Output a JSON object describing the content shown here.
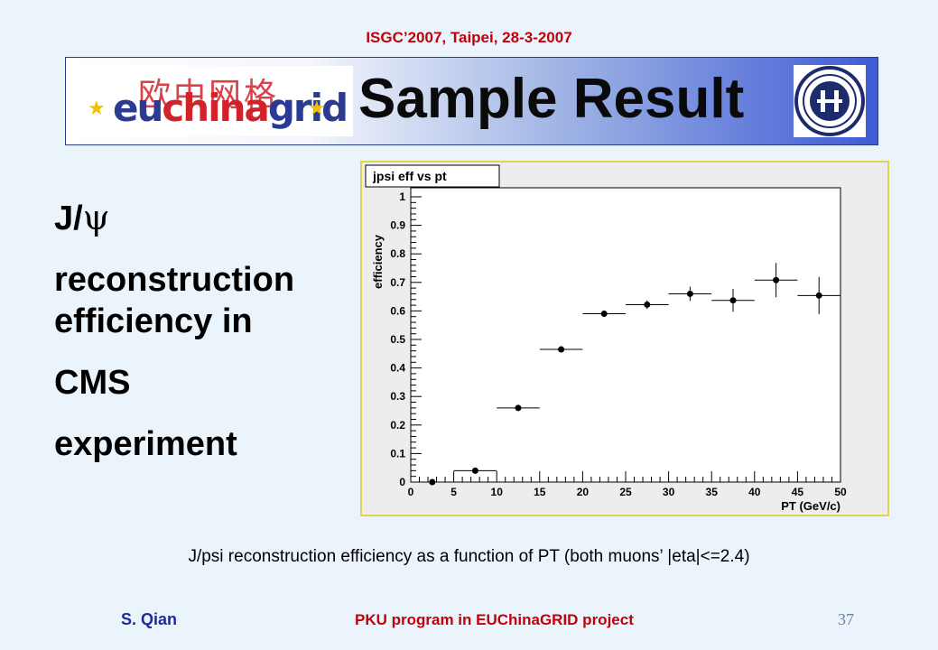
{
  "header": {
    "conference": "ISGC’2007, Taipei, 28-3-2007"
  },
  "banner": {
    "title": "Sample Result",
    "logo_left": {
      "cn_text": "欧中网格",
      "eu": "eu",
      "china": "china",
      "grid": "grid"
    },
    "logo_right": "university-seal-icon"
  },
  "left_text": {
    "line1_prefix": "J/",
    "psi": "ψ",
    "line2": "reconstruction",
    "line3": "efficiency in",
    "line4": "CMS",
    "line5": "experiment"
  },
  "chart_data": {
    "type": "scatter",
    "title": "jpsi eff vs pt",
    "xlabel": "PT  (GeV/c)",
    "ylabel": "efficiency",
    "xlim": [
      0,
      50
    ],
    "ylim": [
      0,
      1
    ],
    "xticks": [
      "0",
      "5",
      "10",
      "15",
      "20",
      "25",
      "30",
      "35",
      "40",
      "45",
      "50"
    ],
    "yticks": [
      "0",
      "0.1",
      "0.2",
      "0.3",
      "0.4",
      "0.5",
      "0.6",
      "0.7",
      "0.8",
      "0.9",
      "1"
    ],
    "series": [
      {
        "points": [
          {
            "x": 2.5,
            "y": 0.0,
            "xerr": 0.5,
            "yerr": 0.0
          },
          {
            "x": 7.5,
            "y": 0.04,
            "xerr": 2.5,
            "yerr": 0.003
          },
          {
            "x": 12.5,
            "y": 0.26,
            "xerr": 2.5,
            "yerr": 0.005
          },
          {
            "x": 17.5,
            "y": 0.465,
            "xerr": 2.5,
            "yerr": 0.006
          },
          {
            "x": 22.5,
            "y": 0.59,
            "xerr": 2.5,
            "yerr": 0.007
          },
          {
            "x": 27.5,
            "y": 0.622,
            "xerr": 2.5,
            "yerr": 0.015
          },
          {
            "x": 32.5,
            "y": 0.66,
            "xerr": 2.5,
            "yerr": 0.025
          },
          {
            "x": 37.5,
            "y": 0.637,
            "xerr": 2.5,
            "yerr": 0.04
          },
          {
            "x": 42.5,
            "y": 0.708,
            "xerr": 2.5,
            "yerr": 0.06
          },
          {
            "x": 47.5,
            "y": 0.654,
            "xerr": 2.5,
            "yerr": 0.065
          }
        ]
      }
    ],
    "grid": false,
    "legend": "none",
    "colors": {
      "marker": "#000000",
      "frame_border": "#dcd455",
      "panel_bg": "#ededed"
    }
  },
  "caption": "J/psi reconstruction efficiency as a function of PT (both muons’ |eta|<=2.4)",
  "footer": {
    "author": "S. Qian",
    "project": "PKU program in EUChinaGRID project",
    "page_number": "37"
  },
  "colors": {
    "header_red": "#c0000b",
    "author_blue": "#1c2a9c",
    "background": "#ecf4fb"
  }
}
